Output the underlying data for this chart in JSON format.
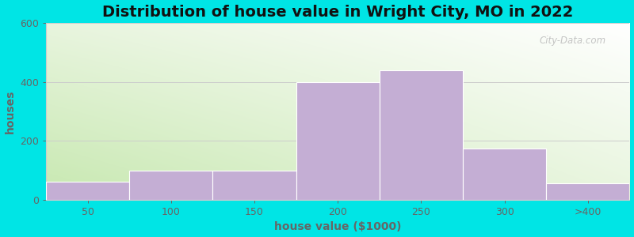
{
  "title": "Distribution of house value in Wright City, MO in 2022",
  "xlabel": "house value ($1000)",
  "ylabel": "houses",
  "bar_labels": [
    "50",
    "100",
    "150",
    "200",
    "250",
    "300",
    ">400"
  ],
  "bar_values": [
    60,
    100,
    100,
    400,
    440,
    175,
    55
  ],
  "bar_color": "#c4aed4",
  "background_outer": "#00e5e5",
  "bg_color_topleft": "#e8f5e0",
  "bg_color_topright": "#ffffff",
  "bg_color_bottomleft": "#c8e8b0",
  "bg_color_bottomright": "#e8f5e0",
  "ylim": [
    0,
    600
  ],
  "yticks": [
    0,
    200,
    400,
    600
  ],
  "title_fontsize": 14,
  "label_fontsize": 10,
  "tick_fontsize": 9,
  "tick_color": "#666666",
  "label_color": "#666666",
  "title_color": "#111111",
  "watermark_text": "City-Data.com",
  "grid_color": "#cccccc"
}
